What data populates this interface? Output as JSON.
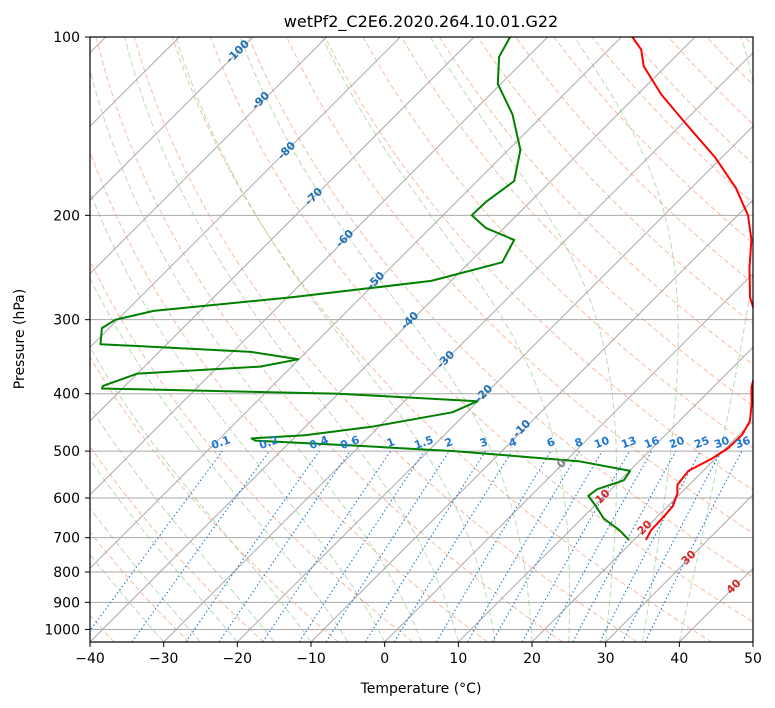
{
  "chart_data": {
    "type": "line",
    "title": "wetPf2_C2E6.2020.264.10.01.G22",
    "xlabel": "Temperature (°C)",
    "ylabel": "Pressure (hPa)",
    "xlim": [
      -40,
      50
    ],
    "ylim": [
      1050,
      100
    ],
    "y_scale": "log",
    "x_ticks": [
      "−40",
      "−30",
      "−20",
      "−10",
      "0",
      "10",
      "20",
      "30",
      "40",
      "50"
    ],
    "y_ticks": [
      "100",
      "200",
      "300",
      "400",
      "500",
      "600",
      "700",
      "800",
      "900",
      "1000"
    ],
    "grid": true,
    "series": [
      {
        "color": "#ff0000",
        "points": [
          [
            706,
            21.6
          ],
          [
            680,
            21.0
          ],
          [
            650,
            20.9
          ],
          [
            620,
            20.7
          ],
          [
            590,
            19.6
          ],
          [
            570,
            18.4
          ],
          [
            540,
            18.0
          ],
          [
            515,
            19.5
          ],
          [
            495,
            20.3
          ],
          [
            470,
            20.4
          ],
          [
            445,
            19.6
          ],
          [
            415,
            17.4
          ],
          [
            390,
            15.2
          ],
          [
            360,
            13.1
          ],
          [
            330,
            10.3
          ],
          [
            300,
            6.8
          ],
          [
            275,
            2.8
          ],
          [
            245,
            -1.3
          ],
          [
            220,
            -4.8
          ],
          [
            200,
            -8.6
          ],
          [
            180,
            -13.9
          ],
          [
            160,
            -20.8
          ],
          [
            140,
            -29.5
          ],
          [
            125,
            -36.8
          ],
          [
            112,
            -43.0
          ],
          [
            105,
            -45.6
          ],
          [
            100,
            -48.5
          ]
        ]
      },
      {
        "color": "#008000",
        "points": [
          [
            706,
            19.3
          ],
          [
            680,
            16.7
          ],
          [
            650,
            13.0
          ],
          [
            620,
            10.3
          ],
          [
            595,
            7.8
          ],
          [
            580,
            8.1
          ],
          [
            560,
            10.5
          ],
          [
            540,
            10.1
          ],
          [
            520,
            1.8
          ],
          [
            500,
            -16.5
          ],
          [
            490,
            -30.0
          ],
          [
            480,
            -44.9
          ],
          [
            476,
            -45.7
          ],
          [
            470,
            -38.9
          ],
          [
            455,
            -31.0
          ],
          [
            430,
            -22.0
          ],
          [
            412,
            -20.1
          ],
          [
            400,
            -39.9
          ],
          [
            392,
            -72.8
          ],
          [
            388,
            -73.0
          ],
          [
            370,
            -70.0
          ],
          [
            360,
            -54.3
          ],
          [
            350,
            -50.1
          ],
          [
            340,
            -57.5
          ],
          [
            330,
            -79.0
          ],
          [
            310,
            -81.0
          ],
          [
            300,
            -80.3
          ],
          [
            290,
            -76.3
          ],
          [
            275,
            -59.4
          ],
          [
            258,
            -42.7
          ],
          [
            240,
            -35.6
          ],
          [
            220,
            -37.0
          ],
          [
            210,
            -42.5
          ],
          [
            200,
            -46.1
          ],
          [
            190,
            -46.0
          ],
          [
            175,
            -45.0
          ],
          [
            155,
            -48.4
          ],
          [
            135,
            -54.3
          ],
          [
            120,
            -60.4
          ],
          [
            108,
            -63.9
          ],
          [
            100,
            -65.1
          ]
        ]
      }
    ],
    "dry_adiabat_labels": [
      "-100",
      "-90",
      "-80",
      "-70",
      "-60",
      "-50",
      "-40",
      "-30",
      "-20",
      "-10",
      "0",
      "10",
      "20",
      "30",
      "40"
    ],
    "mixing_ratio_labels": [
      "0.1",
      "0.2",
      "0.4",
      "0.6",
      "1",
      "1.5",
      "2",
      "3",
      "4",
      "6",
      "8",
      "10",
      "13",
      "16",
      "20",
      "25",
      "30",
      "36"
    ],
    "colors": {
      "temperature": "#ff0000",
      "dewpoint": "#008000",
      "isotherm": "#a9a9a9",
      "isobar": "#a9a9a9",
      "dry_adiabat": "#f4a582",
      "moist_adiabat": "#92c98f",
      "mixing_ratio": "#1f78d4",
      "dry_label": "#d62728",
      "cold_label": "#1f6fb4",
      "zero_label": "#808080"
    }
  }
}
